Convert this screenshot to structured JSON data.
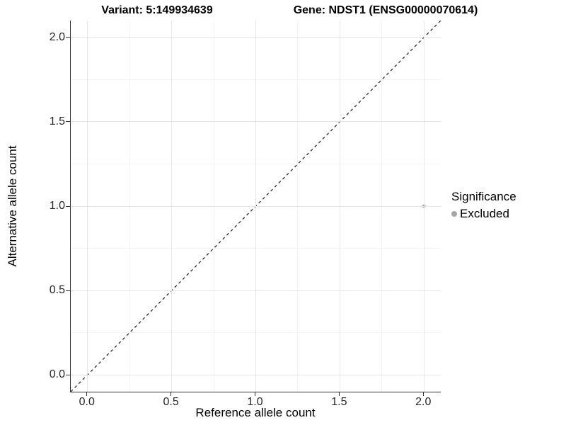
{
  "figure": {
    "background": "#ffffff",
    "titles": {
      "variant": "Variant: 5:149934639",
      "gene": "Gene: NDST1 (ENSG00000070614)"
    },
    "legend": {
      "title": "Significance",
      "items": [
        {
          "label": "Excluded",
          "color": "#a6a6a6",
          "marker": "circle"
        }
      ]
    }
  },
  "chart_data": {
    "type": "scatter",
    "title": "Variant: 5:149934639  /  Gene: NDST1 (ENSG00000070614)",
    "xlabel": "Reference allele count",
    "ylabel": "Alternative allele count",
    "xlim": [
      -0.1,
      2.1
    ],
    "ylim": [
      -0.1,
      2.1
    ],
    "x_ticks": [
      0,
      0.5,
      1,
      1.5,
      2
    ],
    "x_tick_labels": [
      "0.0",
      "0.5",
      "1.0",
      "1.5",
      "2.0"
    ],
    "y_ticks": [
      0,
      0.5,
      1,
      1.5,
      2
    ],
    "y_tick_labels": [
      "0.0",
      "0.5",
      "1.0",
      "1.5",
      "2.0"
    ],
    "minor_gridlines": [
      0.25,
      0.75,
      1.25,
      1.75
    ],
    "grid": true,
    "legend_position": "right",
    "series": [
      {
        "name": "Excluded",
        "color": "#a6a6a6",
        "marker_size": 2.5,
        "points": [
          {
            "x": 2.0,
            "y": 1.0
          }
        ]
      }
    ],
    "reference_line": {
      "style": "dashed",
      "color": "#1a1a1a",
      "from": {
        "x": -0.1,
        "y": -0.1
      },
      "to": {
        "x": 2.1,
        "y": 2.1
      }
    },
    "colors": {
      "grid_major": "#e6e6e6",
      "grid_minor": "#f3f3f3",
      "axis_line": "#333333",
      "tick_label": "#262626",
      "title": "#000000"
    }
  }
}
